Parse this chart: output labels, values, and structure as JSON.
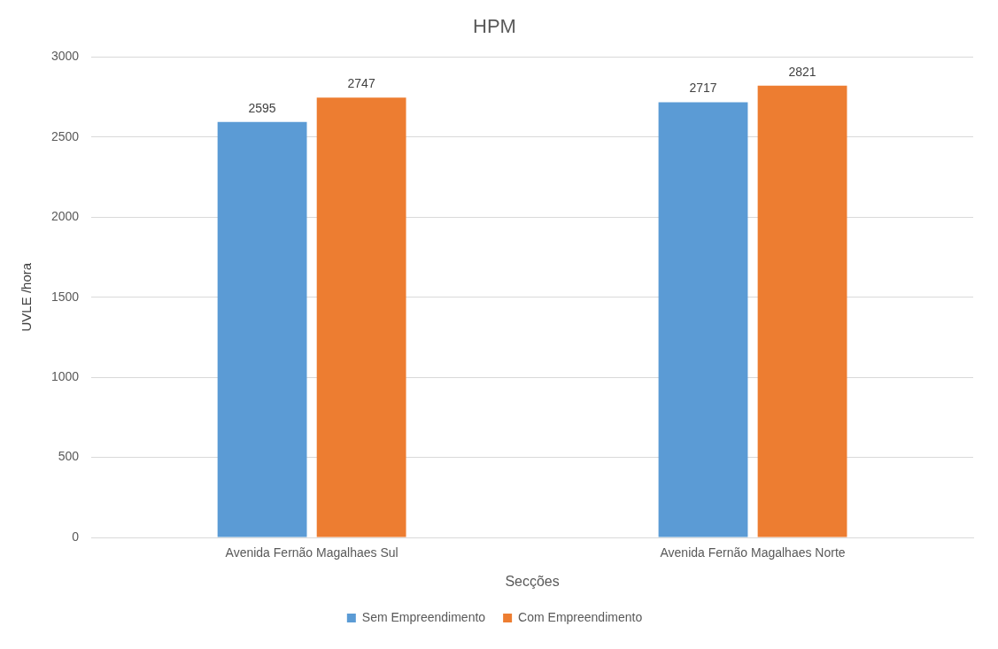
{
  "chart_data": {
    "type": "bar",
    "title": "HPM",
    "xlabel": "Secções",
    "ylabel": "UVLE /hora",
    "categories": [
      "Avenida Fernão Magalhaes Sul",
      "Avenida Fernão Magalhaes Norte"
    ],
    "series": [
      {
        "name": "Sem Empreendimento",
        "color": "#5b9bd5",
        "values": [
          2595,
          2717
        ]
      },
      {
        "name": "Com Empreendimento",
        "color": "#ed7d31",
        "values": [
          2747,
          2821
        ]
      }
    ],
    "ylim": [
      0,
      3000
    ],
    "yticks": [
      0,
      500,
      1000,
      1500,
      2000,
      2500,
      3000
    ],
    "grid": "y",
    "legend": "bottom",
    "data_labels": true
  }
}
